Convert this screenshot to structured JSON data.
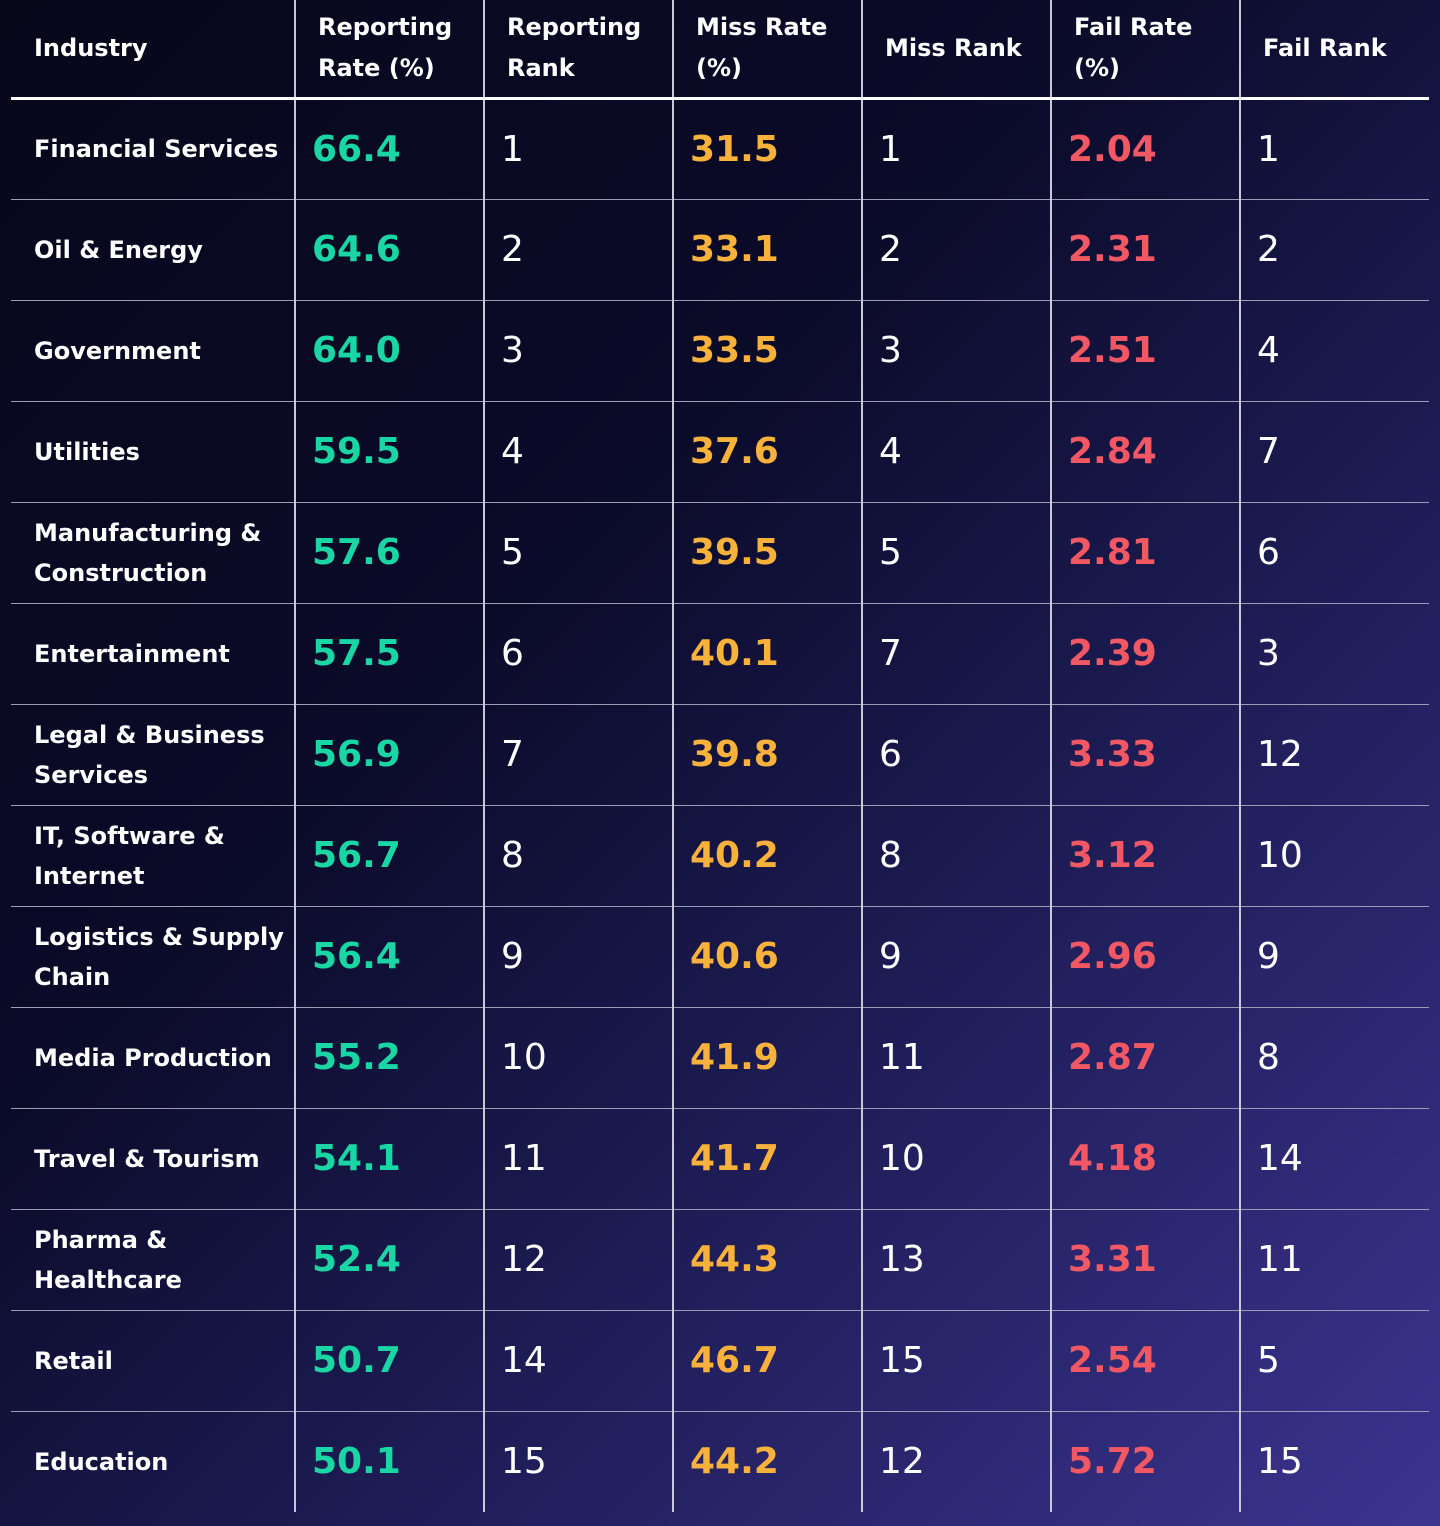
{
  "chart_data": {
    "type": "table",
    "columns": [
      "Industry",
      "Reporting Rate (%)",
      "Reporting Rank",
      "Miss Rate (%)",
      "Miss Rank",
      "Fail Rate (%)",
      "Fail Rank"
    ],
    "rows": [
      [
        "Financial Services",
        "66.4",
        "1",
        "31.5",
        "1",
        "2.04",
        "1"
      ],
      [
        "Oil & Energy",
        "64.6",
        "2",
        "33.1",
        "2",
        "2.31",
        "2"
      ],
      [
        "Government",
        "64.0",
        "3",
        "33.5",
        "3",
        "2.51",
        "4"
      ],
      [
        "Utilities",
        "59.5",
        "4",
        "37.6",
        "4",
        "2.84",
        "7"
      ],
      [
        "Manufacturing & Construction",
        "57.6",
        "5",
        "39.5",
        "5",
        "2.81",
        "6"
      ],
      [
        "Entertainment",
        "57.5",
        "6",
        "40.1",
        "7",
        "2.39",
        "3"
      ],
      [
        "Legal & Business Services",
        "56.9",
        "7",
        "39.8",
        "6",
        "3.33",
        "12"
      ],
      [
        "IT, Software & Internet",
        "56.7",
        "8",
        "40.2",
        "8",
        "3.12",
        "10"
      ],
      [
        "Logistics & Supply Chain",
        "56.4",
        "9",
        "40.6",
        "9",
        "2.96",
        "9"
      ],
      [
        "Media Production",
        "55.2",
        "10",
        "41.9",
        "11",
        "2.87",
        "8"
      ],
      [
        "Travel & Tourism",
        "54.1",
        "11",
        "41.7",
        "10",
        "4.18",
        "14"
      ],
      [
        "Pharma & Healthcare",
        "52.4",
        "12",
        "44.3",
        "13",
        "3.31",
        "11"
      ],
      [
        "Retail",
        "50.7",
        "14",
        "46.7",
        "15",
        "2.54",
        "5"
      ],
      [
        "Education",
        "50.1",
        "15",
        "44.2",
        "12",
        "5.72",
        "15"
      ]
    ],
    "column_colors": [
      "#ffffff",
      "#19d6a4",
      "#ffffff",
      "#f8b23c",
      "#ffffff",
      "#f25864",
      "#ffffff"
    ]
  }
}
